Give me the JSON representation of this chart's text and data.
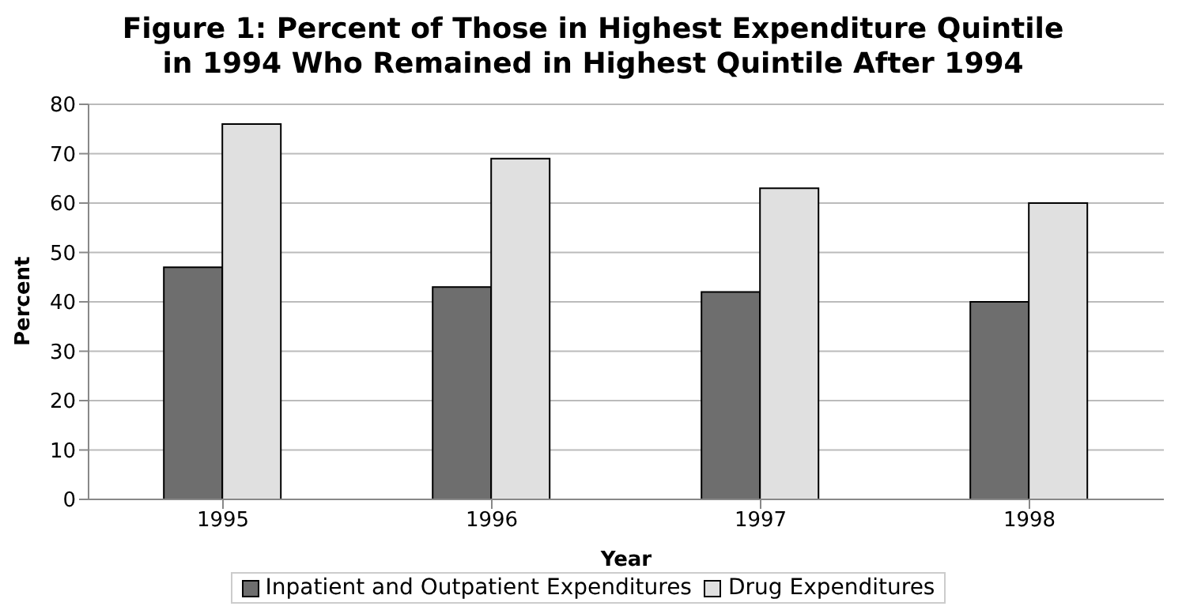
{
  "chart_data": {
    "type": "bar",
    "title": "Figure 1: Percent of Those in Highest Expenditure Quintile in 1994 Who Remained in Highest Quintile After 1994",
    "xlabel": "Year",
    "ylabel": "Percent",
    "categories": [
      "1995",
      "1996",
      "1997",
      "1998"
    ],
    "series": [
      {
        "name": "Inpatient and Outpatient Expenditures",
        "color": "#6e6e6e",
        "values": [
          47,
          43,
          42,
          40
        ]
      },
      {
        "name": "Drug Expenditures",
        "color": "#e0e0e0",
        "values": [
          76,
          69,
          63,
          60
        ]
      }
    ],
    "ylim": [
      0,
      80
    ],
    "yticks": [
      0,
      10,
      20,
      30,
      40,
      50,
      60,
      70,
      80
    ],
    "grid": "y",
    "legend": "bottom"
  }
}
